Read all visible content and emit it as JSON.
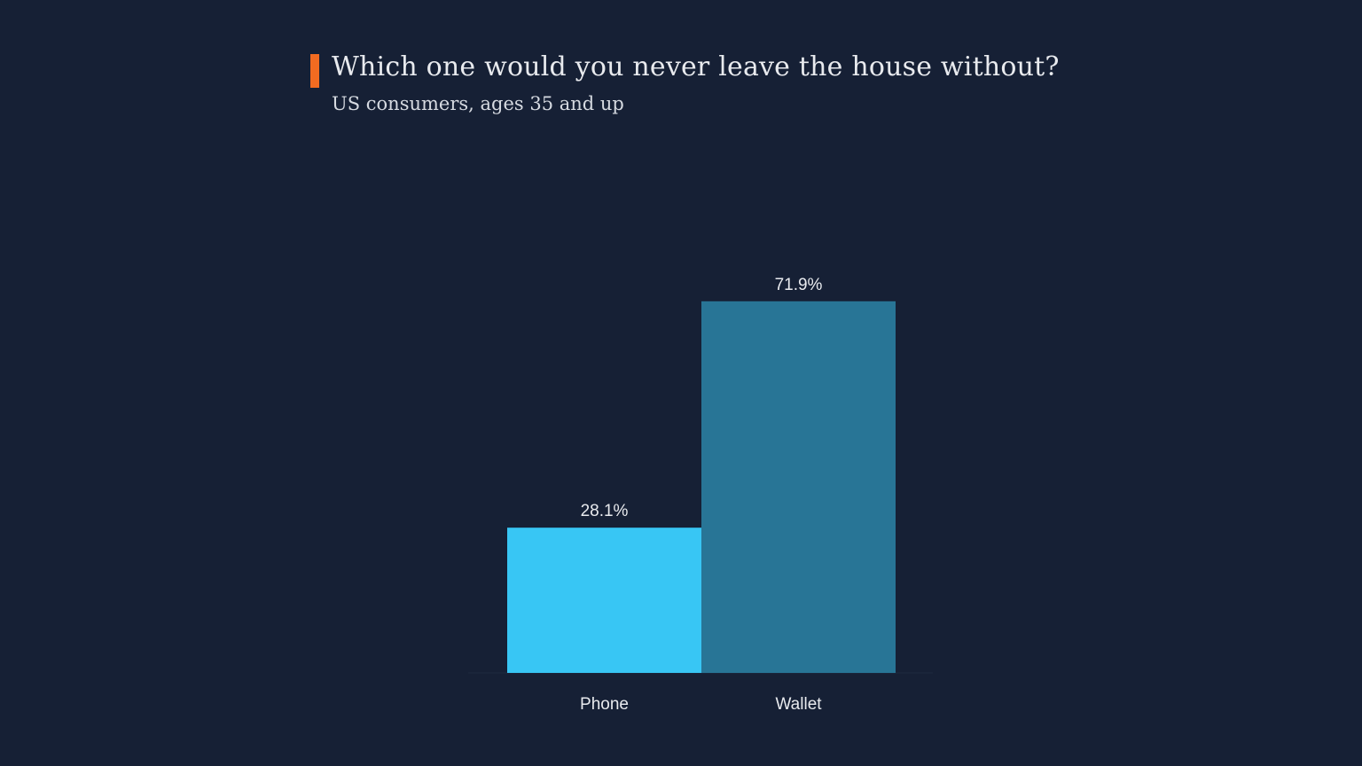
{
  "colors": {
    "background": "#162035",
    "accent": "#f26b21",
    "phone_bar": "#38c6f4",
    "wallet_bar": "#287596",
    "text": "#e8eaee"
  },
  "chart_data": {
    "type": "bar",
    "title": "Which one would you never leave the house without?",
    "subtitle": "US consumers, ages 35 and up",
    "categories": [
      "Phone",
      "Wallet"
    ],
    "values": [
      28.1,
      71.9
    ],
    "value_labels": [
      "28.1%",
      "71.9%"
    ],
    "colors": [
      "#38c6f4",
      "#287596"
    ],
    "ylim": [
      0,
      100
    ],
    "grid": false,
    "legend": "none"
  }
}
